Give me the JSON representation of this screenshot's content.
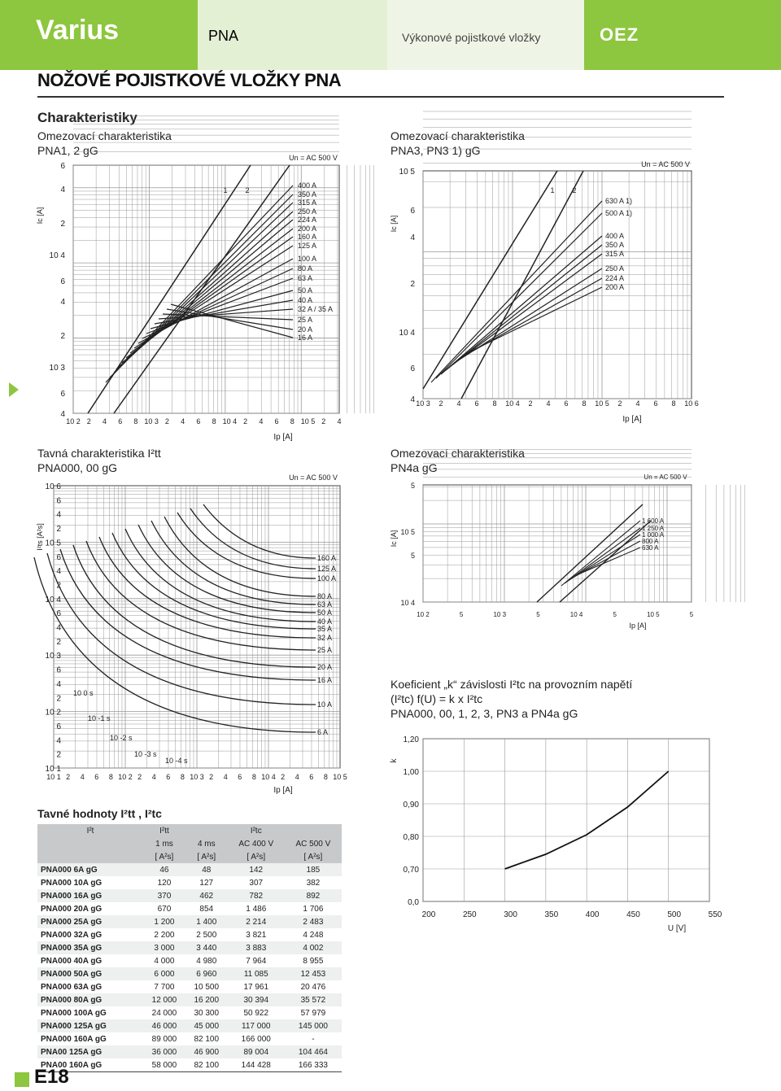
{
  "header": {
    "brand": "Varius",
    "product": "PNA",
    "subtitle": "Výkonové pojistkové vložky",
    "logo": "OEZ"
  },
  "page_title": "NOŽOVÉ POJISTKOVÉ VLOŽKY PNA",
  "section": "Charakteristiky",
  "chart1": {
    "line1": "Omezovací charakteristika",
    "line2": "PNA1, 2 gG",
    "un": "Un = AC 500 V",
    "ylabel": "Ic [A]",
    "xlabel": "Ip [A]",
    "yticks": [
      "6",
      "4",
      "2",
      "10 4",
      "6",
      "4",
      "2",
      "10 3",
      "6",
      "4"
    ],
    "xticks": [
      "10 2",
      "2",
      "4",
      "6",
      "8",
      "10 3",
      "2",
      "4",
      "6",
      "8",
      "10 4",
      "2",
      "4",
      "6",
      "8",
      "10 5",
      "2",
      "4"
    ],
    "curve_nums": [
      "1",
      "2"
    ],
    "labels": [
      "400 A",
      "350 A",
      "315 A",
      "250 A",
      "224 A",
      "200 A",
      "160 A",
      "125 A",
      "100 A",
      "80 A",
      "63 A",
      "50 A",
      "40 A",
      "32 A / 35 A",
      "25 A",
      "20 A",
      "16 A"
    ]
  },
  "chart2": {
    "line1": "Omezovací charakteristika",
    "line2": "PNA3, PN3 1) gG",
    "un": "Un = AC 500 V",
    "ylabel": "Ic [A]",
    "xlabel": "Ip [A]",
    "yticks": [
      "10 5",
      "6",
      "4",
      "2",
      "10 4",
      "6",
      "4"
    ],
    "xticks": [
      "10 3",
      "2",
      "4",
      "6",
      "8",
      "10 4",
      "2",
      "4",
      "6",
      "8",
      "10 5",
      "2",
      "4",
      "6",
      "8",
      "10 6"
    ],
    "curve_nums": [
      "1",
      "2"
    ],
    "labels": [
      "630 A 1)",
      "500 A 1)",
      "400 A",
      "350 A",
      "315 A",
      "250 A",
      "224 A",
      "200 A"
    ]
  },
  "chart3": {
    "line1": "Tavná charakteristika I²tt",
    "line2": "PNA000, 00 gG",
    "un": "Un = AC 500 V",
    "ylabel": "I²ts [A²s]",
    "xlabel": "Ip [A]",
    "yticks": [
      "10 6",
      "6",
      "4",
      "2",
      "10 5",
      "6",
      "4",
      "2",
      "10 4",
      "6",
      "4",
      "2",
      "10 3",
      "6",
      "4",
      "2",
      "10 2",
      "6",
      "4",
      "2",
      "10 1"
    ],
    "xticks": [
      "10 1",
      "2",
      "4",
      "6",
      "8",
      "10 2",
      "2",
      "4",
      "6",
      "8",
      "10 3",
      "2",
      "4",
      "6",
      "8",
      "10 4",
      "2",
      "4",
      "6",
      "8",
      "10 5"
    ],
    "times": [
      "10 0 s",
      "10 -1 s",
      "10 -2 s",
      "10 -3 s",
      "10 -4 s"
    ],
    "labels": [
      "160 A",
      "125 A",
      "100 A",
      "80 A",
      "63 A",
      "50 A",
      "40 A",
      "35 A",
      "32 A",
      "25 A",
      "20 A",
      "16 A",
      "10 A",
      "6 A"
    ]
  },
  "chart4": {
    "line1": "Omezovací charakteristika",
    "line2": "PN4a gG",
    "un": "Un = AC 500 V",
    "ylabel": "Ic [A]",
    "xlabel": "Ip [A]",
    "yticks": [
      "5",
      "10 5",
      "5",
      "10 4"
    ],
    "xticks": [
      "10 2",
      "5",
      "10 3",
      "5",
      "10 4",
      "5",
      "10 5",
      "5"
    ],
    "labels": [
      "1 600 A",
      "1 250 A",
      "1 000 A",
      "800 A",
      "630 A"
    ]
  },
  "chart5": {
    "line1": "Koeficient „k“ závislosti I²tc na provozním napětí",
    "line2": "(I²tc) f(U) = k x I²tc",
    "line3": "PNA000, 00, 1, 2, 3, PN3 a PN4a gG",
    "ylabel": "k",
    "xlabel": "U [V]",
    "yticks": [
      "1,20",
      "1,00",
      "0,90",
      "0,80",
      "0,70",
      "0,0"
    ],
    "xticks": [
      "200",
      "250",
      "300",
      "350",
      "400",
      "450",
      "500",
      "550"
    ]
  },
  "chart_data": {
    "type": "line",
    "title": "Koeficient „k“ závislosti I²tc na provozním napětí",
    "xlabel": "U [V]",
    "ylabel": "k",
    "series": [
      {
        "x": [
          300,
          350,
          400,
          450,
          500
        ],
        "y": [
          0.7,
          0.745,
          0.805,
          0.89,
          1.0
        ]
      }
    ]
  },
  "table": {
    "title": "Tavné hodnoty I²tt , I²tc",
    "head1": [
      "I²t",
      "I²tt",
      "",
      "I²tc",
      ""
    ],
    "head2": [
      "",
      "1 ms",
      "4 ms",
      "AC 400 V",
      "AC 500 V"
    ],
    "head3": [
      "",
      "[ A²s]",
      "[ A²s]",
      "[ A²s]",
      "[ A²s]"
    ],
    "rows": [
      [
        "PNA000 6A gG",
        "46",
        "48",
        "142",
        "185"
      ],
      [
        "PNA000 10A gG",
        "120",
        "127",
        "307",
        "382"
      ],
      [
        "PNA000 16A gG",
        "370",
        "462",
        "782",
        "892"
      ],
      [
        "PNA000 20A gG",
        "670",
        "854",
        "1 486",
        "1 706"
      ],
      [
        "PNA000 25A gG",
        "1 200",
        "1 400",
        "2 214",
        "2 483"
      ],
      [
        "PNA000 32A gG",
        "2 200",
        "2 500",
        "3 821",
        "4 248"
      ],
      [
        "PNA000 35A gG",
        "3 000",
        "3 440",
        "3 883",
        "4 002"
      ],
      [
        "PNA000 40A gG",
        "4 000",
        "4 980",
        "7 964",
        "8 955"
      ],
      [
        "PNA000 50A gG",
        "6 000",
        "6 960",
        "11 085",
        "12 453"
      ],
      [
        "PNA000 63A gG",
        "7 700",
        "10 500",
        "17 961",
        "20 476"
      ],
      [
        "PNA000 80A gG",
        "12 000",
        "16 200",
        "30 394",
        "35 572"
      ],
      [
        "PNA000 100A gG",
        "24 000",
        "30 300",
        "50 922",
        "57 979"
      ],
      [
        "PNA000 125A gG",
        "46 000",
        "45 000",
        "117 000",
        "145 000"
      ],
      [
        "PNA000 160A gG",
        "89 000",
        "82 100",
        "166 000",
        "-"
      ],
      [
        "PNA00 125A gG",
        "36 000",
        "46 900",
        "89 004",
        "104 464"
      ],
      [
        "PNA00 160A gG",
        "58 000",
        "82 100",
        "144 428",
        "166 333"
      ]
    ]
  },
  "page_number": "E18"
}
